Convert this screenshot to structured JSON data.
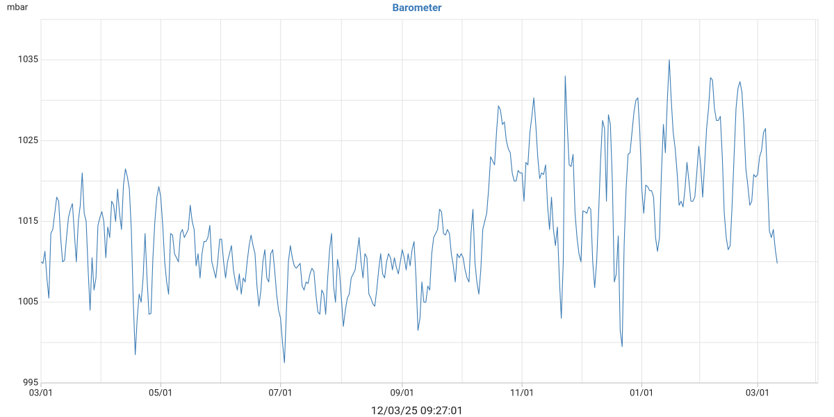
{
  "chart_data": {
    "type": "line",
    "title": "Barometer",
    "y_label": "mbar",
    "footer": "12/03/25 09:27:01",
    "color": "#3b7bb3",
    "grid": true,
    "ylim": [
      995,
      1040
    ],
    "yticks": [
      995,
      1005,
      1015,
      1025,
      1035
    ],
    "categories": [
      "03/01",
      null,
      null,
      null,
      null,
      null,
      null,
      null,
      null,
      null,
      null,
      null,
      null,
      null,
      null,
      null,
      null,
      null,
      null,
      null,
      null,
      null,
      null,
      null,
      null,
      null,
      null,
      null,
      null,
      null,
      null,
      null,
      null,
      null,
      null,
      null,
      null,
      null,
      null,
      null,
      null,
      null,
      null,
      null,
      null,
      null,
      null,
      null,
      null,
      null,
      null,
      null,
      null,
      null,
      null,
      null,
      null,
      null,
      null,
      null,
      null,
      "05/01",
      null,
      null,
      null,
      null,
      null,
      null,
      null,
      null,
      null,
      null,
      null,
      null,
      null,
      null,
      null,
      null,
      null,
      null,
      null,
      null,
      null,
      null,
      null,
      null,
      null,
      null,
      null,
      null,
      null,
      null,
      null,
      null,
      null,
      null,
      null,
      null,
      null,
      null,
      null,
      null,
      null,
      null,
      null,
      null,
      null,
      null,
      null,
      null,
      null,
      null,
      null,
      null,
      null,
      null,
      null,
      null,
      null,
      null,
      null,
      null,
      "07/01",
      null,
      null,
      null,
      null,
      null,
      null,
      null,
      null,
      null,
      null,
      null,
      null,
      null,
      null,
      null,
      null,
      null,
      null,
      null,
      null,
      null,
      null,
      null,
      null,
      null,
      null,
      null,
      null,
      null,
      null,
      null,
      null,
      null,
      null,
      null,
      null,
      null,
      null,
      null,
      null,
      null,
      null,
      null,
      null,
      null,
      null,
      null,
      null,
      null,
      null,
      null,
      null,
      null,
      null,
      null,
      null,
      null,
      null,
      null,
      null,
      null,
      "09/01",
      null,
      null,
      null,
      null,
      null,
      null,
      null,
      null,
      null,
      null,
      null,
      null,
      null,
      null,
      null,
      null,
      null,
      null,
      null,
      null,
      null,
      null,
      null,
      null,
      null,
      null,
      null,
      null,
      null,
      null,
      null,
      null,
      null,
      null,
      null,
      null,
      null,
      null,
      null,
      null,
      null,
      null,
      null,
      null,
      null,
      null,
      null,
      null,
      null,
      null,
      null,
      null,
      null,
      null,
      null,
      null,
      null,
      null,
      null,
      null,
      "11/01",
      null,
      null,
      null,
      null,
      null,
      null,
      null,
      null,
      null,
      null,
      null,
      null,
      null,
      null,
      null,
      null,
      null,
      null,
      null,
      null,
      null,
      null,
      null,
      null,
      null,
      null,
      null,
      null,
      null,
      null,
      null,
      null,
      null,
      null,
      null,
      null,
      null,
      null,
      null,
      null,
      null,
      null,
      null,
      null,
      null,
      null,
      null,
      null,
      null,
      null,
      null,
      null,
      null,
      null,
      null,
      null,
      null,
      null,
      null,
      null,
      "01/01",
      null,
      null,
      null,
      null,
      null,
      null,
      null,
      null,
      null,
      null,
      null,
      null,
      null,
      null,
      null,
      null,
      null,
      null,
      null,
      null,
      null,
      null,
      null,
      null,
      null,
      null,
      null,
      null,
      null,
      null,
      null,
      null,
      null,
      null,
      null,
      null,
      null,
      null,
      null,
      null,
      null,
      null,
      null,
      null,
      null,
      null,
      null,
      null,
      null,
      null,
      null,
      null,
      null,
      null,
      null,
      null,
      null,
      null,
      "03/01",
      null,
      null,
      null,
      null,
      null,
      null,
      null,
      null,
      null,
      null
    ],
    "values": [
      1010,
      1009.8,
      1011.3,
      1008,
      1005.5,
      1013.5,
      1014,
      1016,
      1018,
      1017.5,
      1013,
      1010,
      1010.2,
      1013,
      1015.5,
      1016.5,
      1017.2,
      1013.5,
      1010,
      1015,
      1017,
      1021,
      1016,
      1015,
      1009,
      1004,
      1010.5,
      1006.5,
      1008,
      1014.5,
      1015.5,
      1016.2,
      1015,
      1010.5,
      1014.3,
      1013,
      1017.5,
      1017,
      1015,
      1019,
      1016,
      1014,
      1019.5,
      1021.5,
      1020.5,
      1019,
      1014,
      1005,
      998.5,
      1003,
      1006,
      1005,
      1008,
      1013.5,
      1008,
      1003.5,
      1003.6,
      1010.5,
      1015,
      1018,
      1019.3,
      1018,
      1014.5,
      1010,
      1007.5,
      1006,
      1013.5,
      1013.3,
      1011,
      1010.5,
      1010,
      1013.5,
      1014,
      1013,
      1013.5,
      1014,
      1017,
      1015,
      1014,
      1009.5,
      1011,
      1008,
      1011,
      1012.5,
      1012.5,
      1013,
      1014.5,
      1010,
      1009,
      1008,
      1010,
      1012.8,
      1012.8,
      1010,
      1008,
      1010,
      1011,
      1012,
      1009,
      1007.5,
      1006.5,
      1008.5,
      1006,
      1008,
      1007.5,
      1010,
      1012,
      1013.3,
      1012,
      1011,
      1007,
      1004.5,
      1006.5,
      1010,
      1011.5,
      1008,
      1007.5,
      1011,
      1011.5,
      1009,
      1006,
      1004,
      1003,
      1000,
      997.5,
      1004,
      1010,
      1012,
      1010.5,
      1009.5,
      1009.2,
      1009.5,
      1009.8,
      1007,
      1006.5,
      1007.5,
      1007.3,
      1008.5,
      1009.2,
      1008.8,
      1006,
      1003.8,
      1003.5,
      1006.5,
      1006,
      1003.5,
      1008,
      1011.5,
      1013.5,
      1007,
      1005,
      1010.3,
      1009,
      1005.5,
      1002,
      1004,
      1005.5,
      1006,
      1008,
      1008.5,
      1009,
      1011,
      1013,
      1010,
      1008,
      1011,
      1010.5,
      1006,
      1005.5,
      1004.8,
      1004.5,
      1006.5,
      1009,
      1011,
      1008.5,
      1008,
      1010,
      1011,
      1010.5,
      1009,
      1010.5,
      1009.3,
      1008.5,
      1010,
      1011.5,
      1010.5,
      1009,
      1011,
      1009.5,
      1011.5,
      1012.5,
      1008,
      1001.5,
      1003,
      1007.5,
      1005,
      1005,
      1007,
      1006.5,
      1011,
      1013,
      1013.5,
      1014,
      1016.5,
      1016.2,
      1013.5,
      1013.3,
      1014,
      1013.5,
      1011,
      1009.5,
      1007.5,
      1011,
      1010.5,
      1011,
      1010.5,
      1009,
      1008,
      1007.5,
      1013.5,
      1016.5,
      1010,
      1007.5,
      1006,
      1009,
      1014,
      1015,
      1016,
      1019,
      1023,
      1022.5,
      1022,
      1026,
      1029.3,
      1028.8,
      1027,
      1027.3,
      1025,
      1024,
      1023.5,
      1021,
      1020,
      1020,
      1021.3,
      1021,
      1021,
      1017.5,
      1022.3,
      1022,
      1026,
      1028,
      1030.3,
      1027,
      1023,
      1020.3,
      1021,
      1020.8,
      1022,
      1017,
      1014,
      1018,
      1014,
      1012,
      1014.3,
      1008,
      1003,
      1010,
      1033,
      1027,
      1022,
      1021.8,
      1023.3,
      1016,
      1013,
      1011,
      1010,
      1016.3,
      1016.2,
      1016,
      1016.8,
      1016.5,
      1010,
      1006.8,
      1010,
      1016,
      1022.5,
      1027.5,
      1026.5,
      1017.5,
      1028.2,
      1027,
      1020,
      1007.5,
      1008.5,
      1013.2,
      1001.5,
      999.5,
      1012,
      1019,
      1023.3,
      1023.5,
      1026,
      1028.5,
      1030,
      1030.3,
      1026,
      1019,
      1016,
      1019.5,
      1019.3,
      1018.8,
      1018.8,
      1018,
      1013,
      1011.3,
      1013,
      1021,
      1027,
      1023.5,
      1030,
      1035,
      1030,
      1026,
      1024,
      1021,
      1017,
      1017.5,
      1016.8,
      1019,
      1022.3,
      1020,
      1017.5,
      1017.5,
      1018,
      1021,
      1024.3,
      1022,
      1018,
      1022,
      1026.5,
      1029,
      1032.8,
      1032.5,
      1029,
      1027.5,
      1027.5,
      1028,
      1023,
      1016,
      1013,
      1011.5,
      1012,
      1017,
      1023,
      1029,
      1031.5,
      1032.3,
      1031,
      1027,
      1021.5,
      1019.5,
      1017,
      1017.5,
      1020.8,
      1020.5,
      1020.8,
      1023,
      1023.8,
      1026,
      1026.5,
      1020,
      1013.8,
      1013,
      1014,
      1011.5,
      1009.8
    ]
  }
}
